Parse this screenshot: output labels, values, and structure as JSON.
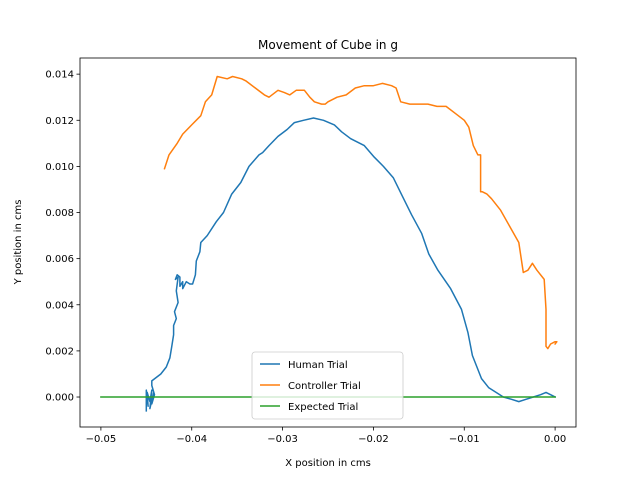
{
  "chart_data": {
    "type": "line",
    "title": "Movement of Cube in g",
    "xlabel": "X position in cms",
    "ylabel": "Y position in cms",
    "xlim": [
      -0.0523,
      0.0023
    ],
    "ylim": [
      -0.0013,
      0.0147
    ],
    "xticks": [
      -0.05,
      -0.04,
      -0.03,
      -0.02,
      -0.01,
      0.0
    ],
    "xtick_labels": [
      "−0.05",
      "−0.04",
      "−0.03",
      "−0.02",
      "−0.01",
      "0.00"
    ],
    "yticks": [
      0.0,
      0.002,
      0.004,
      0.006,
      0.008,
      0.01,
      0.012,
      0.014
    ],
    "ytick_labels": [
      "0.000",
      "0.002",
      "0.004",
      "0.006",
      "0.008",
      "0.010",
      "0.012",
      "0.014"
    ],
    "grid": false,
    "legend_position": "lower-center",
    "series": [
      {
        "name": "Human Trial",
        "color": "#1f77b4",
        "x": [
          -0.045,
          -0.045,
          -0.0448,
          -0.0449,
          -0.0446,
          -0.0444,
          -0.0446,
          -0.0442,
          -0.0444,
          -0.0441,
          -0.0444,
          -0.0444,
          -0.0434,
          -0.0428,
          -0.0424,
          -0.0422,
          -0.042,
          -0.042,
          -0.0417,
          -0.0419,
          -0.0415,
          -0.0417,
          -0.0416,
          -0.0415,
          -0.0418,
          -0.0416,
          -0.0413,
          -0.0413,
          -0.041,
          -0.041,
          -0.0406,
          -0.0402,
          -0.0399,
          -0.0396,
          -0.0395,
          -0.0391,
          -0.039,
          -0.0383,
          -0.0373,
          -0.0365,
          -0.0356,
          -0.0346,
          -0.0337,
          -0.0326,
          -0.0322,
          -0.0315,
          -0.0305,
          -0.0295,
          -0.0287,
          -0.0277,
          -0.0266,
          -0.0255,
          -0.0243,
          -0.0235,
          -0.0225,
          -0.021,
          -0.0199,
          -0.0189,
          -0.0178,
          -0.0168,
          -0.0158,
          -0.0147,
          -0.0139,
          -0.0129,
          -0.0115,
          -0.0103,
          -0.0096,
          -0.0091,
          -0.0081,
          -0.0073,
          -0.0065,
          -0.0057,
          -0.0048,
          -0.004,
          -0.0032,
          -0.0024,
          -0.0016,
          -0.001,
          -0.0005,
          0.0
        ],
        "y": [
          -0.0006,
          0.0003,
          -0.0004,
          0.0002,
          -0.0002,
          0.0003,
          -0.0005,
          0.0002,
          -0.0003,
          0.0001,
          0.0005,
          0.0007,
          0.001,
          0.0013,
          0.0017,
          0.0022,
          0.0027,
          0.0031,
          0.0034,
          0.0037,
          0.0041,
          0.0046,
          0.0049,
          0.0052,
          0.0051,
          0.0053,
          0.0052,
          0.0048,
          0.005,
          0.0047,
          0.005,
          0.0049,
          0.0049,
          0.0053,
          0.0059,
          0.0063,
          0.0067,
          0.007,
          0.0076,
          0.008,
          0.0088,
          0.0093,
          0.01,
          0.0105,
          0.0106,
          0.0109,
          0.0113,
          0.0116,
          0.0119,
          0.012,
          0.0121,
          0.012,
          0.0118,
          0.0115,
          0.0112,
          0.0109,
          0.0104,
          0.01,
          0.0095,
          0.0087,
          0.0079,
          0.0071,
          0.0062,
          0.0055,
          0.0047,
          0.0038,
          0.0028,
          0.0018,
          0.0008,
          0.0004,
          0.0002,
          0.0,
          -0.0001,
          -0.0002,
          -0.0001,
          0.0,
          0.0001,
          0.0002,
          0.0001,
          0.0
        ]
      },
      {
        "name": "Controller Trial",
        "color": "#ff7f0e",
        "x": [
          -0.043,
          -0.0425,
          -0.0416,
          -0.041,
          -0.04,
          -0.039,
          -0.0385,
          -0.0378,
          -0.0372,
          -0.0361,
          -0.0355,
          -0.0345,
          -0.034,
          -0.033,
          -0.032,
          -0.0315,
          -0.0305,
          -0.0298,
          -0.0292,
          -0.0285,
          -0.0276,
          -0.027,
          -0.0265,
          -0.0257,
          -0.0253,
          -0.025,
          -0.024,
          -0.023,
          -0.022,
          -0.021,
          -0.02,
          -0.019,
          -0.018,
          -0.0175,
          -0.017,
          -0.016,
          -0.015,
          -0.014,
          -0.013,
          -0.012,
          -0.011,
          -0.01,
          -0.0095,
          -0.009,
          -0.0085,
          -0.0082,
          -0.0082,
          -0.008,
          -0.0075,
          -0.007,
          -0.006,
          -0.005,
          -0.004,
          -0.0035,
          -0.003,
          -0.0025,
          -0.002,
          -0.0012,
          -0.001,
          -0.001,
          -0.0008,
          -0.0005,
          0.0,
          0.0002,
          0.0
        ],
        "y": [
          0.0099,
          0.0105,
          0.011,
          0.0114,
          0.0118,
          0.0122,
          0.0128,
          0.0131,
          0.0139,
          0.0138,
          0.0139,
          0.0138,
          0.0137,
          0.0134,
          0.0131,
          0.013,
          0.0133,
          0.0132,
          0.0131,
          0.0133,
          0.0133,
          0.013,
          0.0128,
          0.0127,
          0.0127,
          0.0128,
          0.013,
          0.0131,
          0.0134,
          0.0135,
          0.0135,
          0.0136,
          0.0135,
          0.0134,
          0.0128,
          0.0127,
          0.0127,
          0.0127,
          0.0126,
          0.0126,
          0.0123,
          0.012,
          0.0117,
          0.0109,
          0.0105,
          0.0105,
          0.0089,
          0.0089,
          0.0088,
          0.0086,
          0.0081,
          0.0074,
          0.0067,
          0.0054,
          0.0055,
          0.0058,
          0.0055,
          0.0051,
          0.0038,
          0.0022,
          0.0021,
          0.0023,
          0.0024,
          0.0024,
          0.0023
        ]
      },
      {
        "name": "Expected Trial",
        "color": "#2ca02c",
        "x": [
          -0.05,
          0.0
        ],
        "y": [
          0.0,
          0.0
        ]
      }
    ]
  }
}
